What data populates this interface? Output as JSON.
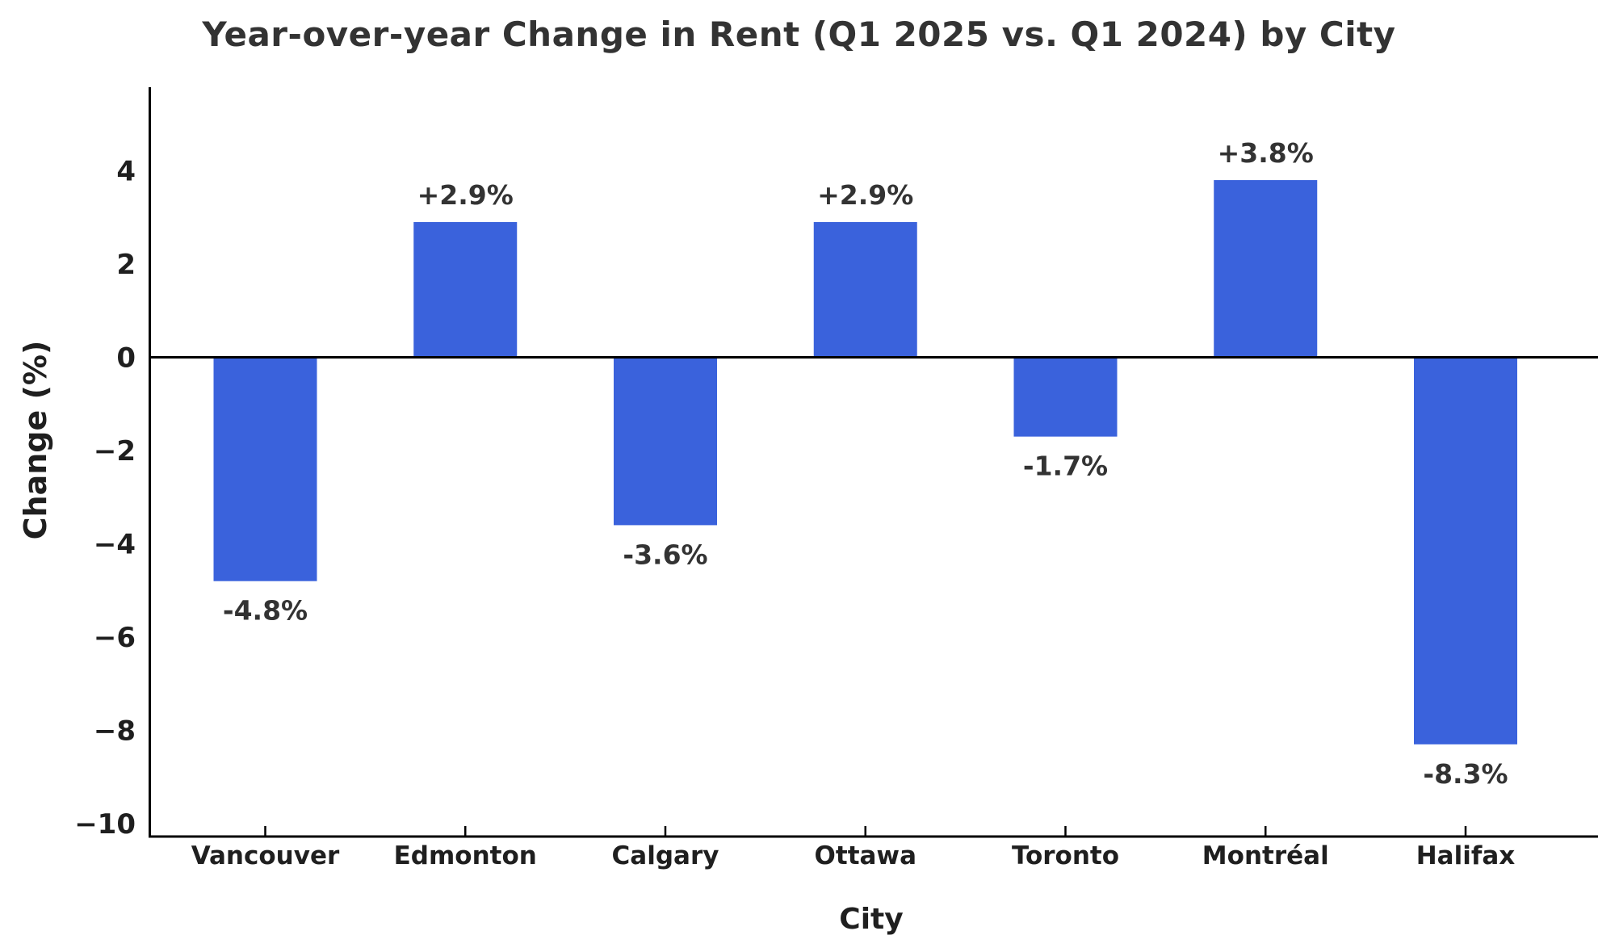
{
  "page_title": "Year-over-year Change in Rent (Q1 2025 vs. Q1 2024) by City",
  "chart_data": {
    "type": "bar",
    "title": "Year-over-year Change in Rent (Q1 2025 vs. Q1 2024) by City",
    "xlabel": "City",
    "ylabel": "Change (%)",
    "categories": [
      "Vancouver",
      "Edmonton",
      "Calgary",
      "Ottawa",
      "Toronto",
      "Montréal",
      "Halifax"
    ],
    "values": [
      -4.8,
      2.9,
      -3.6,
      2.9,
      -1.7,
      3.8,
      -8.3
    ],
    "bar_labels": [
      "-4.8%",
      "+2.9%",
      "-3.6%",
      "+2.9%",
      "-1.7%",
      "+3.8%",
      "-8.3%"
    ],
    "yticks": [
      4,
      2,
      0,
      -2,
      -4,
      -6,
      -8,
      -10
    ],
    "ytick_labels": [
      "4",
      "2",
      "0",
      "−2",
      "−4",
      "−6",
      "−8",
      "−10"
    ],
    "ylim": [
      -10.3,
      5.8
    ],
    "grid": false,
    "legend": "none",
    "zero_line": true,
    "bar_color": "#3a62dc",
    "text_color": "#1f1f1f",
    "label_color": "#333333",
    "axis_color": "#000000",
    "background": "#ffffff"
  }
}
